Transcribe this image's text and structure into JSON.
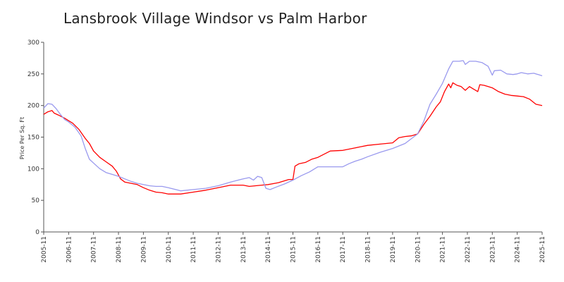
{
  "chart_data": {
    "type": "line",
    "title": "Lansbrook Village Windsor vs Palm Harbor",
    "xlabel": "",
    "ylabel": "Price Per Sq. Ft",
    "ylim": [
      0,
      300
    ],
    "yticks": [
      "0",
      "50",
      "100",
      "150",
      "200",
      "250",
      "300"
    ],
    "xlim": [
      "2005-11",
      "2025-11"
    ],
    "xticks": [
      "2005-11",
      "2006-11",
      "2007-11",
      "2008-11",
      "2009-11",
      "2010-11",
      "2011-11",
      "2012-11",
      "2013-11",
      "2014-11",
      "2015-11",
      "2016-11",
      "2017-11",
      "2018-11",
      "2019-11",
      "2020-11",
      "2021-11",
      "2022-11",
      "2023-11",
      "2024-11",
      "2025-11"
    ],
    "grid": false,
    "legend": "none",
    "series": [
      {
        "color": "#ff0000",
        "points": [
          [
            "2005-11",
            186
          ],
          [
            "2006-01",
            190
          ],
          [
            "2006-03",
            192
          ],
          [
            "2006-04",
            188
          ],
          [
            "2006-06",
            185
          ],
          [
            "2006-09",
            180
          ],
          [
            "2006-11",
            176
          ],
          [
            "2007-01",
            172
          ],
          [
            "2007-04",
            162
          ],
          [
            "2007-07",
            148
          ],
          [
            "2007-09",
            140
          ],
          [
            "2007-11",
            128
          ],
          [
            "2008-02",
            118
          ],
          [
            "2008-05",
            111
          ],
          [
            "2008-08",
            104
          ],
          [
            "2008-10",
            96
          ],
          [
            "2008-12",
            84
          ],
          [
            "2009-02",
            79
          ],
          [
            "2009-05",
            77
          ],
          [
            "2009-08",
            75
          ],
          [
            "2009-11",
            70
          ],
          [
            "2010-02",
            66
          ],
          [
            "2010-05",
            63
          ],
          [
            "2010-08",
            62
          ],
          [
            "2010-11",
            60
          ],
          [
            "2011-05",
            60
          ],
          [
            "2011-11",
            63
          ],
          [
            "2012-05",
            66
          ],
          [
            "2012-11",
            70
          ],
          [
            "2013-05",
            74
          ],
          [
            "2013-11",
            74
          ],
          [
            "2014-02",
            72
          ],
          [
            "2014-05",
            73
          ],
          [
            "2014-08",
            74
          ],
          [
            "2014-11",
            75
          ],
          [
            "2015-04",
            78
          ],
          [
            "2015-09",
            83
          ],
          [
            "2015-11",
            83
          ],
          [
            "2015-12",
            104
          ],
          [
            "2016-02",
            108
          ],
          [
            "2016-05",
            110
          ],
          [
            "2016-08",
            115
          ],
          [
            "2016-11",
            118
          ],
          [
            "2017-02",
            123
          ],
          [
            "2017-05",
            128
          ],
          [
            "2017-11",
            129
          ],
          [
            "2018-05",
            133
          ],
          [
            "2018-11",
            137
          ],
          [
            "2019-05",
            139
          ],
          [
            "2019-11",
            141
          ],
          [
            "2020-02",
            149
          ],
          [
            "2020-05",
            151
          ],
          [
            "2020-08",
            152
          ],
          [
            "2020-11",
            155
          ],
          [
            "2021-02",
            170
          ],
          [
            "2021-05",
            183
          ],
          [
            "2021-08",
            198
          ],
          [
            "2021-10",
            206
          ],
          [
            "2021-12",
            222
          ],
          [
            "2022-02",
            234
          ],
          [
            "2022-03",
            228
          ],
          [
            "2022-04",
            236
          ],
          [
            "2022-06",
            232
          ],
          [
            "2022-08",
            230
          ],
          [
            "2022-10",
            224
          ],
          [
            "2022-12",
            230
          ],
          [
            "2023-02",
            226
          ],
          [
            "2023-04",
            222
          ],
          [
            "2023-05",
            233
          ],
          [
            "2023-07",
            232
          ],
          [
            "2023-09",
            230
          ],
          [
            "2023-11",
            228
          ],
          [
            "2024-02",
            222
          ],
          [
            "2024-05",
            218
          ],
          [
            "2024-08",
            216
          ],
          [
            "2024-11",
            215
          ],
          [
            "2025-02",
            214
          ],
          [
            "2025-05",
            210
          ],
          [
            "2025-08",
            202
          ],
          [
            "2025-11",
            200
          ]
        ]
      },
      {
        "color": "#9999ee",
        "points": [
          [
            "2005-11",
            196
          ],
          [
            "2006-01",
            203
          ],
          [
            "2006-03",
            202
          ],
          [
            "2006-05",
            195
          ],
          [
            "2006-07",
            186
          ],
          [
            "2006-09",
            178
          ],
          [
            "2006-11",
            174
          ],
          [
            "2007-02",
            166
          ],
          [
            "2007-05",
            152
          ],
          [
            "2007-07",
            132
          ],
          [
            "2007-09",
            115
          ],
          [
            "2007-11",
            109
          ],
          [
            "2008-02",
            100
          ],
          [
            "2008-05",
            94
          ],
          [
            "2008-08",
            91
          ],
          [
            "2008-11",
            88
          ],
          [
            "2009-02",
            84
          ],
          [
            "2009-05",
            80
          ],
          [
            "2009-08",
            77
          ],
          [
            "2009-11",
            75
          ],
          [
            "2010-02",
            73
          ],
          [
            "2010-05",
            72
          ],
          [
            "2010-08",
            72
          ],
          [
            "2010-11",
            70
          ],
          [
            "2011-05",
            65
          ],
          [
            "2011-11",
            67
          ],
          [
            "2012-05",
            69
          ],
          [
            "2012-11",
            73
          ],
          [
            "2013-05",
            79
          ],
          [
            "2013-11",
            84
          ],
          [
            "2014-02",
            86
          ],
          [
            "2014-04",
            82
          ],
          [
            "2014-06",
            88
          ],
          [
            "2014-08",
            86
          ],
          [
            "2014-10",
            69
          ],
          [
            "2014-12",
            67
          ],
          [
            "2015-03",
            71
          ],
          [
            "2015-07",
            76
          ],
          [
            "2015-11",
            82
          ],
          [
            "2016-03",
            89
          ],
          [
            "2016-07",
            95
          ],
          [
            "2016-11",
            103
          ],
          [
            "2017-05",
            103
          ],
          [
            "2017-11",
            103
          ],
          [
            "2018-02",
            108
          ],
          [
            "2018-05",
            112
          ],
          [
            "2018-08",
            115
          ],
          [
            "2018-11",
            119
          ],
          [
            "2019-05",
            126
          ],
          [
            "2019-11",
            132
          ],
          [
            "2020-05",
            140
          ],
          [
            "2020-11",
            155
          ],
          [
            "2021-02",
            175
          ],
          [
            "2021-05",
            202
          ],
          [
            "2021-08",
            218
          ],
          [
            "2021-11",
            235
          ],
          [
            "2022-02",
            258
          ],
          [
            "2022-04",
            270
          ],
          [
            "2022-07",
            270
          ],
          [
            "2022-09",
            271
          ],
          [
            "2022-10",
            265
          ],
          [
            "2022-12",
            270
          ],
          [
            "2023-03",
            270
          ],
          [
            "2023-06",
            268
          ],
          [
            "2023-09",
            262
          ],
          [
            "2023-11",
            248
          ],
          [
            "2023-12",
            255
          ],
          [
            "2024-03",
            256
          ],
          [
            "2024-06",
            250
          ],
          [
            "2024-09",
            249
          ],
          [
            "2024-11",
            250
          ],
          [
            "2025-01",
            252
          ],
          [
            "2025-04",
            250
          ],
          [
            "2025-07",
            251
          ],
          [
            "2025-11",
            247
          ]
        ]
      }
    ]
  }
}
